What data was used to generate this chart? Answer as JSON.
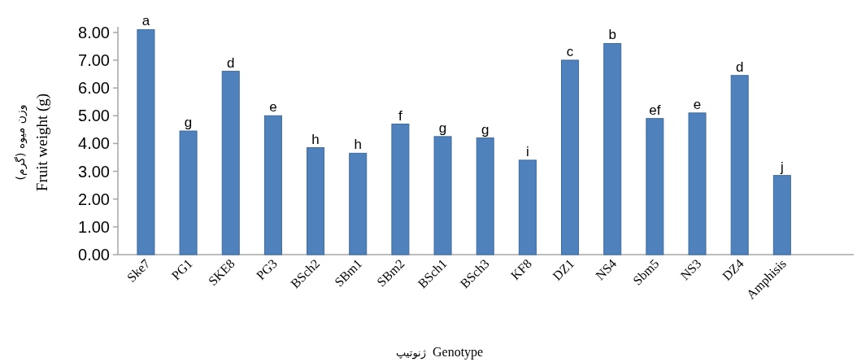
{
  "chart_data": {
    "type": "bar",
    "xlabel": "Genotype",
    "ylabel": "Fruit weight (g)",
    "annotations": [
      "وزن میوه (گرم)",
      "ژنوتیپ"
    ],
    "categories": [
      "Ske7",
      "PG1",
      "SKE8",
      "PG3",
      "BSch2",
      "SBm1",
      "SBm2",
      "BSch1",
      "BSch3",
      "KF8",
      "DZ1",
      "NS4",
      "Sbm5",
      "NS3",
      "DZ4",
      "Amphisis"
    ],
    "values": [
      8.1,
      4.45,
      6.6,
      5.0,
      3.85,
      3.65,
      4.7,
      4.25,
      4.2,
      3.4,
      7.0,
      7.6,
      4.9,
      5.1,
      6.45,
      2.85
    ],
    "value_labels": [
      "a",
      "g",
      "d",
      "e",
      "h",
      "h",
      "f",
      "g",
      "g",
      "i",
      "c",
      "b",
      "ef",
      "e",
      "d",
      "j"
    ],
    "color": "#4f81bd",
    "ylim": [
      0,
      8.2
    ],
    "yticks": [
      {
        "value": 0,
        "label": "0.00"
      },
      {
        "value": 1,
        "label": "1.00"
      },
      {
        "value": 2,
        "label": "2.00"
      },
      {
        "value": 3,
        "label": "3.00"
      },
      {
        "value": 4,
        "label": "4.00"
      },
      {
        "value": 5,
        "label": "5.00"
      },
      {
        "value": 6,
        "label": "6.00"
      },
      {
        "value": 7,
        "label": "7.00"
      },
      {
        "value": 8,
        "label": "8.00"
      }
    ],
    "grid": false
  }
}
